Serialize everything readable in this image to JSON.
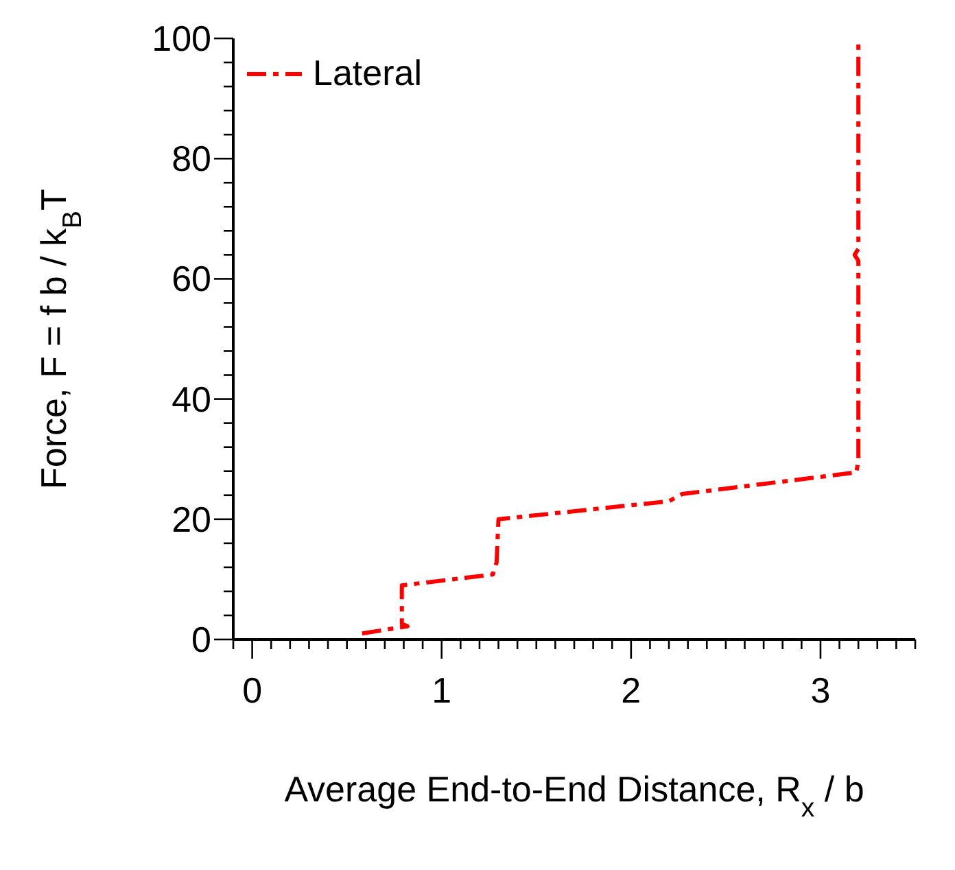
{
  "chart_data": {
    "type": "line",
    "xlabel": "Average End-to-End Distance, R$_{x}$ / b",
    "ylabel": "Force, F = f b / k$_{B}$T",
    "series": [
      {
        "name": "Lateral",
        "color": "#ff0000",
        "x": [
          0.58,
          0.82,
          0.79,
          0.79,
          1.27,
          1.29,
          1.3,
          2.2,
          2.27,
          3.19,
          3.2,
          3.2,
          3.18,
          3.2,
          3.2
        ],
        "values": [
          1,
          2.2,
          2.6,
          9,
          10.8,
          12.8,
          20,
          23,
          24.2,
          27.8,
          30,
          63,
          64,
          65,
          100
        ]
      }
    ],
    "xlim": [
      -0.1,
      3.5
    ],
    "xticks": [
      {
        "value": -0.1,
        "label": null
      },
      0,
      {
        "value": 0.1,
        "label": null
      },
      {
        "value": 0.2,
        "label": null
      },
      {
        "value": 0.3,
        "label": null
      },
      {
        "value": 0.4,
        "label": null
      },
      {
        "value": 0.5,
        "label": null
      },
      {
        "value": 0.6,
        "label": null
      },
      {
        "value": 0.7,
        "label": null
      },
      {
        "value": 0.8,
        "label": null
      },
      {
        "value": 0.9,
        "label": null
      },
      1,
      {
        "value": 1.1,
        "label": null
      },
      {
        "value": 1.2,
        "label": null
      },
      {
        "value": 1.3,
        "label": null
      },
      {
        "value": 1.4,
        "label": null
      },
      {
        "value": 1.5,
        "label": null
      },
      {
        "value": 1.6,
        "label": null
      },
      {
        "value": 1.7,
        "label": null
      },
      {
        "value": 1.8,
        "label": null
      },
      {
        "value": 1.9,
        "label": null
      },
      2,
      {
        "value": 2.1,
        "label": null
      },
      {
        "value": 2.2,
        "label": null
      },
      {
        "value": 2.3,
        "label": null
      },
      {
        "value": 2.4,
        "label": null
      },
      {
        "value": 2.5,
        "label": null
      },
      {
        "value": 2.6,
        "label": null
      },
      {
        "value": 2.7,
        "label": null
      },
      {
        "value": 2.8,
        "label": null
      },
      {
        "value": 2.9,
        "label": null
      },
      3,
      {
        "value": 3.1,
        "label": null
      },
      {
        "value": 3.2,
        "label": null
      },
      {
        "value": 3.3,
        "label": null
      },
      {
        "value": 3.4,
        "label": null
      },
      {
        "value": 3.5,
        "label": null
      }
    ],
    "ylim": [
      0,
      100
    ],
    "yticks": [
      0,
      {
        "value": 4,
        "label": null
      },
      {
        "value": 8,
        "label": null
      },
      {
        "value": 12,
        "label": null
      },
      {
        "value": 16,
        "label": null
      },
      20,
      {
        "value": 24,
        "label": null
      },
      {
        "value": 28,
        "label": null
      },
      {
        "value": 32,
        "label": null
      },
      {
        "value": 36,
        "label": null
      },
      40,
      {
        "value": 44,
        "label": null
      },
      {
        "value": 48,
        "label": null
      },
      {
        "value": 52,
        "label": null
      },
      {
        "value": 56,
        "label": null
      },
      60,
      {
        "value": 64,
        "label": null
      },
      {
        "value": 68,
        "label": null
      },
      {
        "value": 72,
        "label": null
      },
      {
        "value": 76,
        "label": null
      },
      80,
      {
        "value": 84,
        "label": null
      },
      {
        "value": 88,
        "label": null
      },
      {
        "value": 92,
        "label": null
      },
      {
        "value": 96,
        "label": null
      },
      100
    ],
    "grid": false,
    "legend": "top left",
    "marker": "none",
    "line_style": "dashed"
  }
}
